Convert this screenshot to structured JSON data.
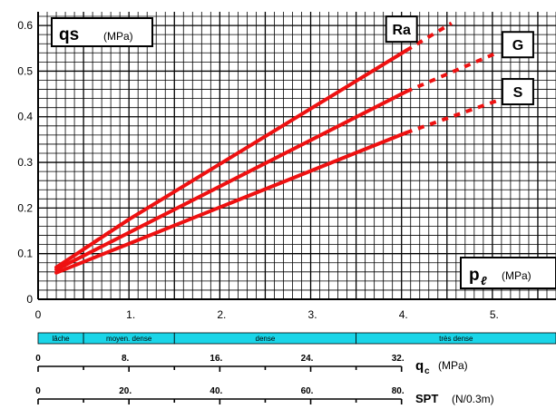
{
  "chart_data": {
    "type": "line",
    "x_axis": {
      "range": [
        0,
        5.7
      ],
      "tick_labels": [
        "0",
        "1.",
        "2.",
        "3.",
        "4.",
        "5."
      ],
      "ticks": [
        0,
        1,
        2,
        3,
        4,
        5
      ],
      "unit_symbol": "p",
      "unit_subscript": "ℓ",
      "unit": "(MPa)"
    },
    "y_axis": {
      "range": [
        0,
        0.63
      ],
      "tick_labels": [
        "0",
        "0.1",
        "0.2",
        "0.3",
        "0.4",
        "0.5",
        "0.6"
      ],
      "ticks": [
        0,
        0.1,
        0.2,
        0.3,
        0.4,
        0.5,
        0.6
      ],
      "unit_symbol": "qs",
      "unit": "(MPa)"
    },
    "grid": true,
    "series": [
      {
        "name": "Ra",
        "color": "#ee1111",
        "solid": [
          [
            0.2,
            0.07
          ],
          [
            1.0,
            0.175
          ],
          [
            4.05,
            0.545
          ]
        ],
        "dashed_low": [
          [
            0.5,
            0.11
          ],
          [
            1.0,
            0.175
          ]
        ],
        "dashed_high": [
          [
            4.05,
            0.545
          ],
          [
            4.55,
            0.605
          ]
        ],
        "label_at": [
          4.0,
          0.592
        ]
      },
      {
        "name": "G",
        "color": "#ee1111",
        "solid": [
          [
            0.2,
            0.065
          ],
          [
            4.05,
            0.455
          ]
        ],
        "dashed_high": [
          [
            4.05,
            0.455
          ],
          [
            5.05,
            0.54
          ]
        ],
        "label_at": [
          5.28,
          0.558
        ]
      },
      {
        "name": "S",
        "color": "#ee1111",
        "solid": [
          [
            0.2,
            0.058
          ],
          [
            4.05,
            0.365
          ]
        ],
        "dashed_high": [
          [
            4.05,
            0.365
          ],
          [
            5.05,
            0.435
          ]
        ],
        "label_at": [
          5.28,
          0.455
        ]
      }
    ],
    "density_bands": [
      {
        "label": "lâche",
        "from": 0,
        "to": 0.5
      },
      {
        "label": "moyen. dense",
        "from": 0.5,
        "to": 1.5
      },
      {
        "label": "dense",
        "from": 1.5,
        "to": 3.5
      },
      {
        "label": "très dense",
        "from": 3.5,
        "to": 5.7
      }
    ],
    "qc_scale": {
      "labels": [
        "0",
        "8.",
        "16.",
        "24.",
        "32."
      ],
      "values": [
        0,
        8,
        16,
        24,
        32
      ],
      "major_span_x": 4.0,
      "unit_symbol": "q",
      "unit_subscript": "c",
      "unit": "(MPa)"
    },
    "spt_scale": {
      "labels": [
        "0",
        "20.",
        "40.",
        "60.",
        "80."
      ],
      "values": [
        0,
        20,
        40,
        60,
        80
      ],
      "major_span_x": 4.0,
      "unit_symbol": "SPT",
      "unit": "(N/0.3m)"
    },
    "band_color": "#1ad5e8"
  }
}
